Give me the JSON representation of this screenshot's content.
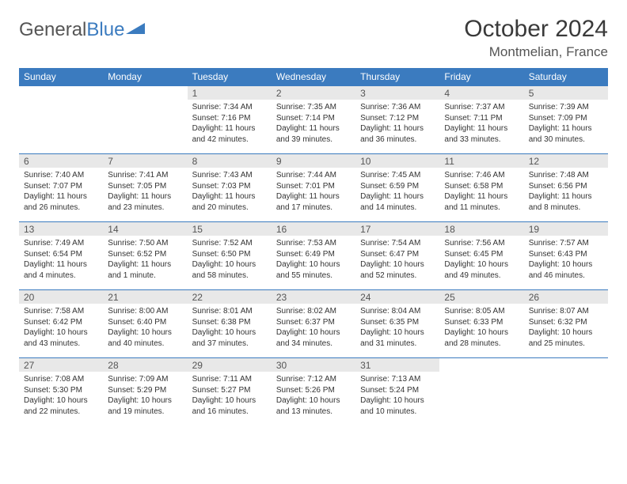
{
  "logo": {
    "text1": "General",
    "text2": "Blue"
  },
  "title": "October 2024",
  "location": "Montmelian, France",
  "colors": {
    "header_bg": "#3b7bbf",
    "header_fg": "#ffffff",
    "daynum_bg": "#e8e8e8",
    "border": "#3b7bbf",
    "text": "#333333"
  },
  "weekdays": [
    "Sunday",
    "Monday",
    "Tuesday",
    "Wednesday",
    "Thursday",
    "Friday",
    "Saturday"
  ],
  "weeks": [
    [
      null,
      null,
      {
        "n": "1",
        "sr": "7:34 AM",
        "ss": "7:16 PM",
        "dl": "11 hours and 42 minutes."
      },
      {
        "n": "2",
        "sr": "7:35 AM",
        "ss": "7:14 PM",
        "dl": "11 hours and 39 minutes."
      },
      {
        "n": "3",
        "sr": "7:36 AM",
        "ss": "7:12 PM",
        "dl": "11 hours and 36 minutes."
      },
      {
        "n": "4",
        "sr": "7:37 AM",
        "ss": "7:11 PM",
        "dl": "11 hours and 33 minutes."
      },
      {
        "n": "5",
        "sr": "7:39 AM",
        "ss": "7:09 PM",
        "dl": "11 hours and 30 minutes."
      }
    ],
    [
      {
        "n": "6",
        "sr": "7:40 AM",
        "ss": "7:07 PM",
        "dl": "11 hours and 26 minutes."
      },
      {
        "n": "7",
        "sr": "7:41 AM",
        "ss": "7:05 PM",
        "dl": "11 hours and 23 minutes."
      },
      {
        "n": "8",
        "sr": "7:43 AM",
        "ss": "7:03 PM",
        "dl": "11 hours and 20 minutes."
      },
      {
        "n": "9",
        "sr": "7:44 AM",
        "ss": "7:01 PM",
        "dl": "11 hours and 17 minutes."
      },
      {
        "n": "10",
        "sr": "7:45 AM",
        "ss": "6:59 PM",
        "dl": "11 hours and 14 minutes."
      },
      {
        "n": "11",
        "sr": "7:46 AM",
        "ss": "6:58 PM",
        "dl": "11 hours and 11 minutes."
      },
      {
        "n": "12",
        "sr": "7:48 AM",
        "ss": "6:56 PM",
        "dl": "11 hours and 8 minutes."
      }
    ],
    [
      {
        "n": "13",
        "sr": "7:49 AM",
        "ss": "6:54 PM",
        "dl": "11 hours and 4 minutes."
      },
      {
        "n": "14",
        "sr": "7:50 AM",
        "ss": "6:52 PM",
        "dl": "11 hours and 1 minute."
      },
      {
        "n": "15",
        "sr": "7:52 AM",
        "ss": "6:50 PM",
        "dl": "10 hours and 58 minutes."
      },
      {
        "n": "16",
        "sr": "7:53 AM",
        "ss": "6:49 PM",
        "dl": "10 hours and 55 minutes."
      },
      {
        "n": "17",
        "sr": "7:54 AM",
        "ss": "6:47 PM",
        "dl": "10 hours and 52 minutes."
      },
      {
        "n": "18",
        "sr": "7:56 AM",
        "ss": "6:45 PM",
        "dl": "10 hours and 49 minutes."
      },
      {
        "n": "19",
        "sr": "7:57 AM",
        "ss": "6:43 PM",
        "dl": "10 hours and 46 minutes."
      }
    ],
    [
      {
        "n": "20",
        "sr": "7:58 AM",
        "ss": "6:42 PM",
        "dl": "10 hours and 43 minutes."
      },
      {
        "n": "21",
        "sr": "8:00 AM",
        "ss": "6:40 PM",
        "dl": "10 hours and 40 minutes."
      },
      {
        "n": "22",
        "sr": "8:01 AM",
        "ss": "6:38 PM",
        "dl": "10 hours and 37 minutes."
      },
      {
        "n": "23",
        "sr": "8:02 AM",
        "ss": "6:37 PM",
        "dl": "10 hours and 34 minutes."
      },
      {
        "n": "24",
        "sr": "8:04 AM",
        "ss": "6:35 PM",
        "dl": "10 hours and 31 minutes."
      },
      {
        "n": "25",
        "sr": "8:05 AM",
        "ss": "6:33 PM",
        "dl": "10 hours and 28 minutes."
      },
      {
        "n": "26",
        "sr": "8:07 AM",
        "ss": "6:32 PM",
        "dl": "10 hours and 25 minutes."
      }
    ],
    [
      {
        "n": "27",
        "sr": "7:08 AM",
        "ss": "5:30 PM",
        "dl": "10 hours and 22 minutes."
      },
      {
        "n": "28",
        "sr": "7:09 AM",
        "ss": "5:29 PM",
        "dl": "10 hours and 19 minutes."
      },
      {
        "n": "29",
        "sr": "7:11 AM",
        "ss": "5:27 PM",
        "dl": "10 hours and 16 minutes."
      },
      {
        "n": "30",
        "sr": "7:12 AM",
        "ss": "5:26 PM",
        "dl": "10 hours and 13 minutes."
      },
      {
        "n": "31",
        "sr": "7:13 AM",
        "ss": "5:24 PM",
        "dl": "10 hours and 10 minutes."
      },
      null,
      null
    ]
  ]
}
